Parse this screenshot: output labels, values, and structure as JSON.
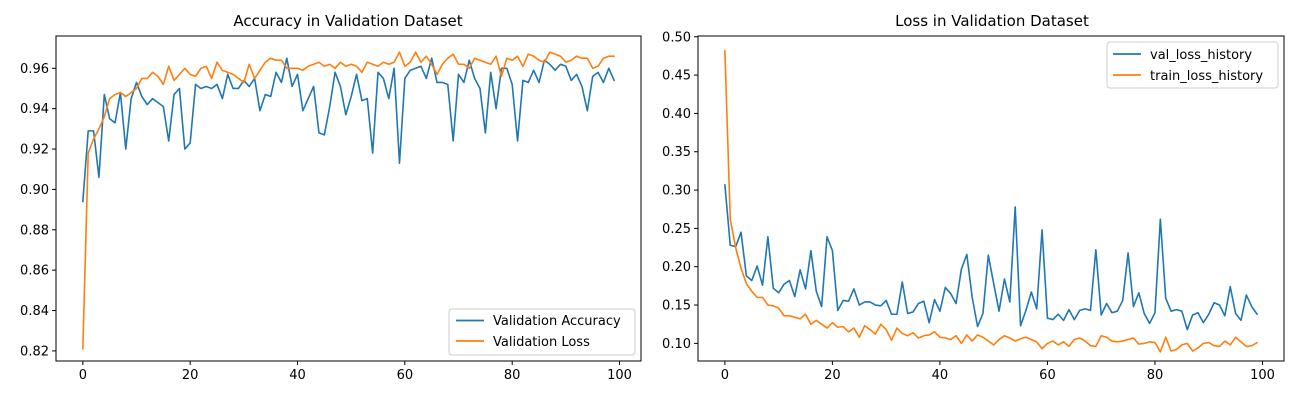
{
  "chart_data": [
    {
      "type": "line",
      "title": "Accuracy in Validation Dataset",
      "xlabel": "",
      "ylabel": "",
      "xlim": [
        -5,
        104
      ],
      "ylim": [
        0.815,
        0.976
      ],
      "xticks": [
        0,
        20,
        40,
        60,
        80,
        100
      ],
      "yticks": [
        0.82,
        0.84,
        0.86,
        0.88,
        0.9,
        0.92,
        0.94,
        0.96
      ],
      "ytick_labels": [
        "0.82",
        "0.84",
        "0.86",
        "0.88",
        "0.90",
        "0.92",
        "0.94",
        "0.96"
      ],
      "grid": false,
      "legend_position": "bottom-right",
      "series": [
        {
          "name": "Validation Accuracy",
          "color": "#1f77b4",
          "x": [
            0,
            1,
            2,
            3,
            4,
            5,
            6,
            7,
            8,
            9,
            10,
            11,
            12,
            13,
            14,
            15,
            16,
            17,
            18,
            19,
            20,
            21,
            22,
            23,
            24,
            25,
            26,
            27,
            28,
            29,
            30,
            31,
            32,
            33,
            34,
            35,
            36,
            37,
            38,
            39,
            40,
            41,
            42,
            43,
            44,
            45,
            46,
            47,
            48,
            49,
            50,
            51,
            52,
            53,
            54,
            55,
            56,
            57,
            58,
            59,
            60,
            61,
            62,
            63,
            64,
            65,
            66,
            67,
            68,
            69,
            70,
            71,
            72,
            73,
            74,
            75,
            76,
            77,
            78,
            79,
            80,
            81,
            82,
            83,
            84,
            85,
            86,
            87,
            88,
            89,
            90,
            91,
            92,
            93,
            94,
            95,
            96,
            97,
            98,
            99
          ],
          "values": [
            0.894,
            0.929,
            0.929,
            0.906,
            0.947,
            0.935,
            0.933,
            0.948,
            0.92,
            0.945,
            0.953,
            0.946,
            0.942,
            0.945,
            0.943,
            0.941,
            0.924,
            0.947,
            0.95,
            0.92,
            0.923,
            0.952,
            0.95,
            0.951,
            0.95,
            0.952,
            0.945,
            0.957,
            0.95,
            0.95,
            0.954,
            0.951,
            0.955,
            0.939,
            0.947,
            0.946,
            0.958,
            0.953,
            0.965,
            0.951,
            0.957,
            0.939,
            0.945,
            0.951,
            0.928,
            0.927,
            0.941,
            0.958,
            0.951,
            0.937,
            0.946,
            0.957,
            0.944,
            0.945,
            0.918,
            0.958,
            0.955,
            0.945,
            0.96,
            0.913,
            0.955,
            0.959,
            0.96,
            0.961,
            0.955,
            0.965,
            0.953,
            0.953,
            0.952,
            0.924,
            0.957,
            0.953,
            0.964,
            0.955,
            0.95,
            0.928,
            0.958,
            0.94,
            0.96,
            0.96,
            0.952,
            0.924,
            0.954,
            0.953,
            0.959,
            0.953,
            0.964,
            0.962,
            0.959,
            0.962,
            0.961,
            0.954,
            0.957,
            0.951,
            0.939,
            0.956,
            0.958,
            0.953,
            0.96,
            0.954
          ]
        },
        {
          "name": "Validation Loss",
          "color": "#ff7f0e",
          "x": [
            0,
            1,
            2,
            3,
            4,
            5,
            6,
            7,
            8,
            9,
            10,
            11,
            12,
            13,
            14,
            15,
            16,
            17,
            18,
            19,
            20,
            21,
            22,
            23,
            24,
            25,
            26,
            27,
            28,
            29,
            30,
            31,
            32,
            33,
            34,
            35,
            36,
            37,
            38,
            39,
            40,
            41,
            42,
            43,
            44,
            45,
            46,
            47,
            48,
            49,
            50,
            51,
            52,
            53,
            54,
            55,
            56,
            57,
            58,
            59,
            60,
            61,
            62,
            63,
            64,
            65,
            66,
            67,
            68,
            69,
            70,
            71,
            72,
            73,
            74,
            75,
            76,
            77,
            78,
            79,
            80,
            81,
            82,
            83,
            84,
            85,
            86,
            87,
            88,
            89,
            90,
            91,
            92,
            93,
            94,
            95,
            96,
            97,
            98,
            99
          ],
          "values": [
            0.821,
            0.918,
            0.925,
            0.93,
            0.936,
            0.945,
            0.947,
            0.948,
            0.946,
            0.948,
            0.95,
            0.955,
            0.955,
            0.958,
            0.956,
            0.952,
            0.961,
            0.954,
            0.957,
            0.96,
            0.957,
            0.956,
            0.96,
            0.961,
            0.955,
            0.963,
            0.959,
            0.958,
            0.957,
            0.955,
            0.953,
            0.962,
            0.955,
            0.959,
            0.963,
            0.965,
            0.964,
            0.964,
            0.96,
            0.96,
            0.96,
            0.959,
            0.961,
            0.962,
            0.963,
            0.961,
            0.962,
            0.96,
            0.963,
            0.961,
            0.962,
            0.961,
            0.958,
            0.963,
            0.962,
            0.961,
            0.963,
            0.962,
            0.963,
            0.968,
            0.961,
            0.963,
            0.968,
            0.963,
            0.966,
            0.962,
            0.957,
            0.962,
            0.965,
            0.967,
            0.962,
            0.962,
            0.96,
            0.965,
            0.964,
            0.963,
            0.962,
            0.966,
            0.956,
            0.965,
            0.964,
            0.966,
            0.961,
            0.967,
            0.966,
            0.964,
            0.963,
            0.968,
            0.967,
            0.966,
            0.963,
            0.964,
            0.966,
            0.965,
            0.965,
            0.96,
            0.961,
            0.965,
            0.966,
            0.966
          ]
        }
      ]
    },
    {
      "type": "line",
      "title": "Loss in Validation Dataset",
      "xlabel": "",
      "ylabel": "",
      "xlim": [
        -5,
        104
      ],
      "ylim": [
        0.077,
        0.501
      ],
      "xticks": [
        0,
        20,
        40,
        60,
        80,
        100
      ],
      "yticks": [
        0.1,
        0.15,
        0.2,
        0.25,
        0.3,
        0.35,
        0.4,
        0.45,
        0.5
      ],
      "ytick_labels": [
        "0.10",
        "0.15",
        "0.20",
        "0.25",
        "0.30",
        "0.35",
        "0.40",
        "0.45",
        "0.50"
      ],
      "grid": false,
      "legend_position": "top-right",
      "series": [
        {
          "name": "val_loss_history",
          "color": "#1f77b4",
          "x": [
            0,
            1,
            2,
            3,
            4,
            5,
            6,
            7,
            8,
            9,
            10,
            11,
            12,
            13,
            14,
            15,
            16,
            17,
            18,
            19,
            20,
            21,
            22,
            23,
            24,
            25,
            26,
            27,
            28,
            29,
            30,
            31,
            32,
            33,
            34,
            35,
            36,
            37,
            38,
            39,
            40,
            41,
            42,
            43,
            44,
            45,
            46,
            47,
            48,
            49,
            50,
            51,
            52,
            53,
            54,
            55,
            56,
            57,
            58,
            59,
            60,
            61,
            62,
            63,
            64,
            65,
            66,
            67,
            68,
            69,
            70,
            71,
            72,
            73,
            74,
            75,
            76,
            77,
            78,
            79,
            80,
            81,
            82,
            83,
            84,
            85,
            86,
            87,
            88,
            89,
            90,
            91,
            92,
            93,
            94,
            95,
            96,
            97,
            98,
            99
          ],
          "values": [
            0.307,
            0.228,
            0.226,
            0.245,
            0.188,
            0.182,
            0.201,
            0.176,
            0.239,
            0.172,
            0.166,
            0.177,
            0.182,
            0.161,
            0.196,
            0.171,
            0.221,
            0.168,
            0.148,
            0.239,
            0.221,
            0.143,
            0.156,
            0.155,
            0.171,
            0.15,
            0.154,
            0.154,
            0.15,
            0.149,
            0.156,
            0.138,
            0.138,
            0.18,
            0.139,
            0.141,
            0.152,
            0.155,
            0.127,
            0.157,
            0.142,
            0.173,
            0.165,
            0.152,
            0.197,
            0.216,
            0.16,
            0.122,
            0.139,
            0.215,
            0.178,
            0.142,
            0.184,
            0.154,
            0.278,
            0.123,
            0.143,
            0.167,
            0.145,
            0.248,
            0.133,
            0.131,
            0.138,
            0.13,
            0.144,
            0.131,
            0.143,
            0.145,
            0.143,
            0.222,
            0.137,
            0.152,
            0.14,
            0.142,
            0.156,
            0.218,
            0.148,
            0.166,
            0.139,
            0.126,
            0.14,
            0.262,
            0.159,
            0.142,
            0.144,
            0.142,
            0.118,
            0.137,
            0.14,
            0.127,
            0.138,
            0.153,
            0.15,
            0.136,
            0.174,
            0.139,
            0.13,
            0.163,
            0.148,
            0.138
          ]
        },
        {
          "name": "train_loss_history",
          "color": "#ff7f0e",
          "x": [
            0,
            1,
            2,
            3,
            4,
            5,
            6,
            7,
            8,
            9,
            10,
            11,
            12,
            13,
            14,
            15,
            16,
            17,
            18,
            19,
            20,
            21,
            22,
            23,
            24,
            25,
            26,
            27,
            28,
            29,
            30,
            31,
            32,
            33,
            34,
            35,
            36,
            37,
            38,
            39,
            40,
            41,
            42,
            43,
            44,
            45,
            46,
            47,
            48,
            49,
            50,
            51,
            52,
            53,
            54,
            55,
            56,
            57,
            58,
            59,
            60,
            61,
            62,
            63,
            64,
            65,
            66,
            67,
            68,
            69,
            70,
            71,
            72,
            73,
            74,
            75,
            76,
            77,
            78,
            79,
            80,
            81,
            82,
            83,
            84,
            85,
            86,
            87,
            88,
            89,
            90,
            91,
            92,
            93,
            94,
            95,
            96,
            97,
            98,
            99
          ],
          "values": [
            0.482,
            0.262,
            0.225,
            0.198,
            0.178,
            0.168,
            0.16,
            0.16,
            0.15,
            0.149,
            0.146,
            0.136,
            0.136,
            0.134,
            0.132,
            0.138,
            0.125,
            0.13,
            0.125,
            0.12,
            0.127,
            0.121,
            0.122,
            0.115,
            0.12,
            0.108,
            0.123,
            0.118,
            0.112,
            0.125,
            0.118,
            0.104,
            0.12,
            0.113,
            0.11,
            0.114,
            0.107,
            0.11,
            0.111,
            0.115,
            0.108,
            0.107,
            0.105,
            0.11,
            0.1,
            0.111,
            0.103,
            0.111,
            0.108,
            0.103,
            0.098,
            0.105,
            0.11,
            0.107,
            0.103,
            0.106,
            0.108,
            0.105,
            0.102,
            0.093,
            0.1,
            0.103,
            0.098,
            0.102,
            0.096,
            0.105,
            0.107,
            0.103,
            0.097,
            0.096,
            0.11,
            0.108,
            0.103,
            0.102,
            0.103,
            0.105,
            0.107,
            0.099,
            0.1,
            0.102,
            0.101,
            0.089,
            0.108,
            0.09,
            0.092,
            0.098,
            0.1,
            0.09,
            0.094,
            0.1,
            0.101,
            0.097,
            0.096,
            0.103,
            0.098,
            0.108,
            0.102,
            0.096,
            0.097,
            0.101
          ]
        }
      ]
    }
  ]
}
